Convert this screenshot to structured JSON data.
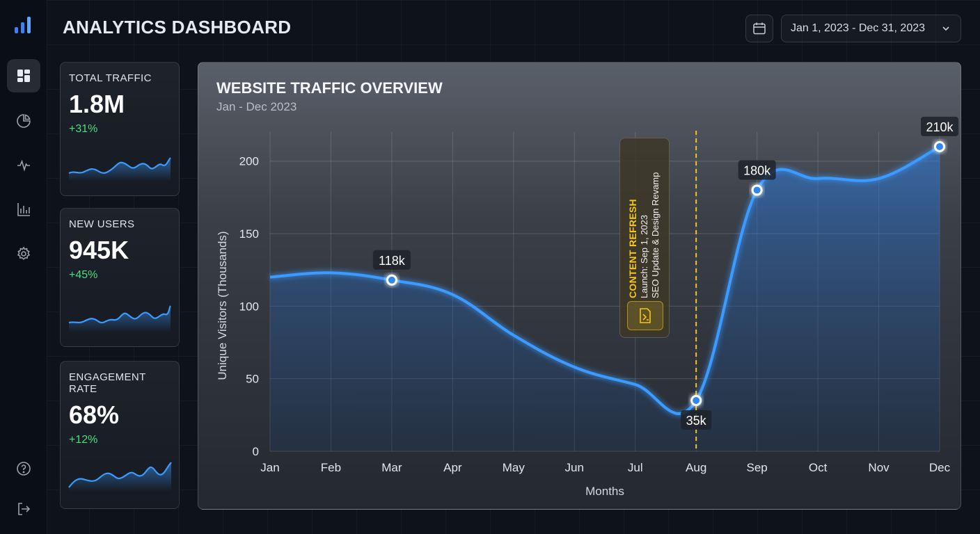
{
  "app": {
    "title": "ANALYTICS DASHBOARD"
  },
  "sidebar": {
    "items": [
      {
        "id": "dashboard",
        "icon": "dashboard-grid-icon",
        "active": true
      },
      {
        "id": "reports",
        "icon": "pie-chart-icon",
        "active": false
      },
      {
        "id": "activity",
        "icon": "activity-pulse-icon",
        "active": false
      },
      {
        "id": "stats",
        "icon": "bar-chart-icon",
        "active": false
      },
      {
        "id": "settings",
        "icon": "gear-icon",
        "active": false
      }
    ],
    "bottom": [
      {
        "id": "help",
        "icon": "help-circle-icon"
      },
      {
        "id": "logout",
        "icon": "logout-icon"
      }
    ]
  },
  "header": {
    "calendar_icon": "calendar-icon",
    "date_range": "Jan 1, 2023 - Dec 31, 2023"
  },
  "kpis": [
    {
      "label": "TOTAL TRAFFIC",
      "value": "1.8M",
      "change": "+31%"
    },
    {
      "label": "NEW USERS",
      "value": "945K",
      "change": "+45%"
    },
    {
      "label": "ENGAGEMENT RATE",
      "value": "68%",
      "change": "+12%"
    }
  ],
  "colors": {
    "accent": "#3b9bff",
    "positive": "#4ade80",
    "annotation": "#f5c518"
  },
  "chart_data": {
    "type": "area",
    "title": "WEBSITE TRAFFIC OVERVIEW",
    "subtitle": "Jan - Dec 2023",
    "xlabel": "Months",
    "ylabel": "Unique Visitors (Thousands)",
    "categories": [
      "Jan",
      "Feb",
      "Mar",
      "Apr",
      "May",
      "Jun",
      "Jul",
      "Aug",
      "Sep",
      "Oct",
      "Nov",
      "Dec"
    ],
    "series": [
      {
        "values": [
          120,
          123,
          118,
          108,
          80,
          58,
          46,
          35,
          180,
          188,
          188,
          210
        ]
      }
    ],
    "ylim": [
      0,
      220
    ],
    "yticks": [
      0,
      50,
      100,
      150,
      200
    ],
    "grid": true,
    "data_labels": [
      {
        "index": 2,
        "text": "118k"
      },
      {
        "index": 7,
        "text": "35k"
      },
      {
        "index": 8,
        "text": "180k"
      },
      {
        "index": 11,
        "text": "210k"
      }
    ],
    "annotation": {
      "at_index": 7,
      "title": "CONTENT REFRESH",
      "lines": [
        "Launch: Sep 1, 2023",
        "SEO Update & Design Revamp"
      ],
      "icon": "document-edit-icon"
    }
  }
}
